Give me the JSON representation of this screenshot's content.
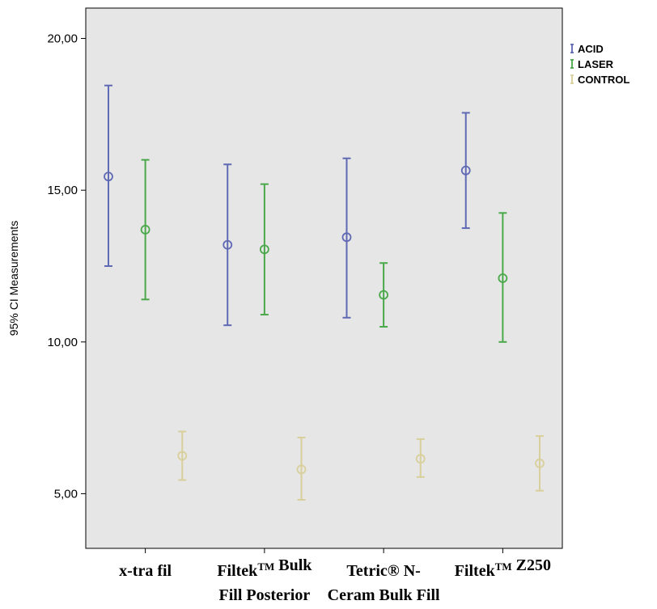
{
  "chart_data": {
    "type": "errorbar",
    "title": "",
    "xlabel": "",
    "ylabel": "95% CI Measurements",
    "ylim": [
      3.2,
      21.0
    ],
    "yticks": [
      5,
      10,
      15,
      20
    ],
    "ytick_labels": [
      "5,00",
      "10,00",
      "15,00",
      "20,00"
    ],
    "grid": false,
    "background": "#e6e6e6",
    "legend_position": "top-right",
    "categories": [
      {
        "lines": [
          [
            {
              "t": "x-tra fil"
            }
          ]
        ]
      },
      {
        "lines": [
          [
            {
              "t": "Filtek"
            },
            {
              "t": "TM",
              "sup": true
            },
            {
              "t": " Bulk"
            }
          ],
          [
            {
              "t": "Fill Posterior"
            }
          ]
        ]
      },
      {
        "lines": [
          [
            {
              "t": "Tetric® N-"
            }
          ],
          [
            {
              "t": "Ceram Bulk Fill"
            }
          ]
        ]
      },
      {
        "lines": [
          [
            {
              "t": "Filtek"
            },
            {
              "t": "TM",
              "sup": true
            },
            {
              "t": " Z250"
            }
          ]
        ]
      }
    ],
    "series": [
      {
        "name": "ACID",
        "color": "#5f69b4",
        "points": [
          {
            "mean": 15.45,
            "low": 12.5,
            "high": 18.45
          },
          {
            "mean": 13.2,
            "low": 10.55,
            "high": 15.85
          },
          {
            "mean": 13.45,
            "low": 10.8,
            "high": 16.05
          },
          {
            "mean": 15.65,
            "low": 13.75,
            "high": 17.55
          }
        ]
      },
      {
        "name": "LASER",
        "color": "#4aa84a",
        "points": [
          {
            "mean": 13.7,
            "low": 11.4,
            "high": 16.0
          },
          {
            "mean": 13.05,
            "low": 10.9,
            "high": 15.2
          },
          {
            "mean": 11.55,
            "low": 10.5,
            "high": 12.6
          },
          {
            "mean": 12.1,
            "low": 10.0,
            "high": 14.25
          }
        ]
      },
      {
        "name": "CONTROL",
        "color": "#d8cf9a",
        "points": [
          {
            "mean": 6.25,
            "low": 5.45,
            "high": 7.05
          },
          {
            "mean": 5.8,
            "low": 4.8,
            "high": 6.85
          },
          {
            "mean": 6.15,
            "low": 5.55,
            "high": 6.8
          },
          {
            "mean": 6.0,
            "low": 5.1,
            "high": 6.9
          }
        ]
      }
    ]
  }
}
